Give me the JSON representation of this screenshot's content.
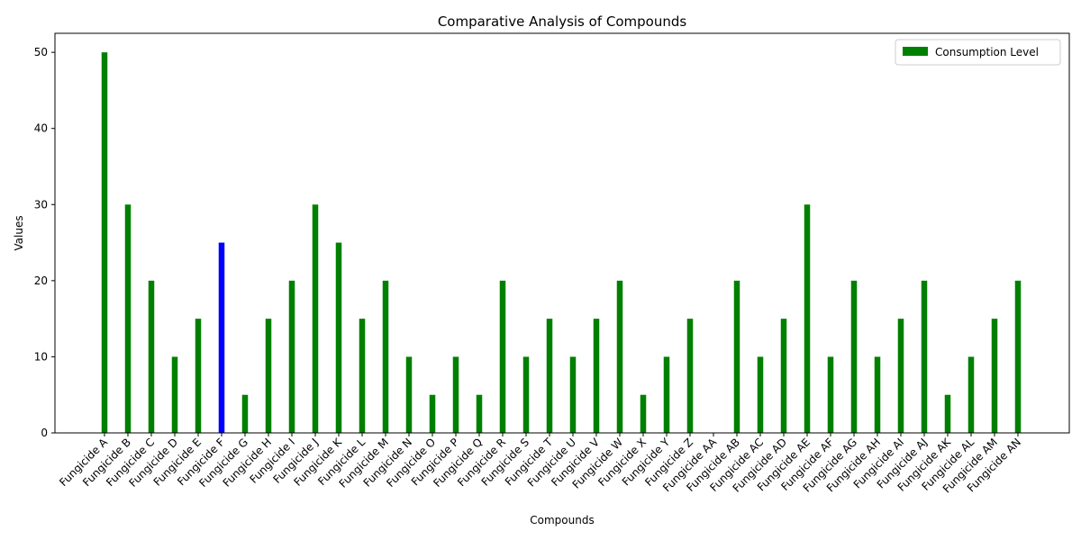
{
  "chart_data": {
    "type": "bar",
    "title": "Comparative Analysis of Compounds",
    "xlabel": "Compounds",
    "ylabel": "Values",
    "ylim": [
      0,
      52.5
    ],
    "yticks": [
      0,
      10,
      20,
      30,
      40,
      50
    ],
    "grid": false,
    "legend_position": "top-right",
    "categories": [
      "Fungicide A",
      "Fungicide B",
      "Fungicide C",
      "Fungicide D",
      "Fungicide E",
      "Fungicide F",
      "Fungicide G",
      "Fungicide H",
      "Fungicide I",
      "Fungicide J",
      "Fungicide K",
      "Fungicide L",
      "Fungicide M",
      "Fungicide N",
      "Fungicide O",
      "Fungicide P",
      "Fungicide Q",
      "Fungicide R",
      "Fungicide S",
      "Fungicide T",
      "Fungicide U",
      "Fungicide V",
      "Fungicide W",
      "Fungicide X",
      "Fungicide Y",
      "Fungicide Z",
      "Fungicide AA",
      "Fungicide AB",
      "Fungicide AC",
      "Fungicide AD",
      "Fungicide AE",
      "Fungicide AF",
      "Fungicide AG",
      "Fungicide AH",
      "Fungicide AI",
      "Fungicide AJ",
      "Fungicide AK",
      "Fungicide AL",
      "Fungicide AM",
      "Fungicide AN"
    ],
    "series": [
      {
        "name": "Consumption Level",
        "color": "#008000",
        "values": [
          50,
          30,
          20,
          10,
          15,
          25,
          5,
          15,
          20,
          30,
          25,
          15,
          20,
          10,
          5,
          10,
          5,
          20,
          10,
          15,
          10,
          15,
          20,
          5,
          10,
          15,
          0,
          20,
          10,
          15,
          30,
          10,
          20,
          10,
          15,
          20,
          5,
          10,
          15,
          20
        ]
      }
    ],
    "highlight": {
      "category": "Fungicide F",
      "color": "#0000ff"
    }
  }
}
